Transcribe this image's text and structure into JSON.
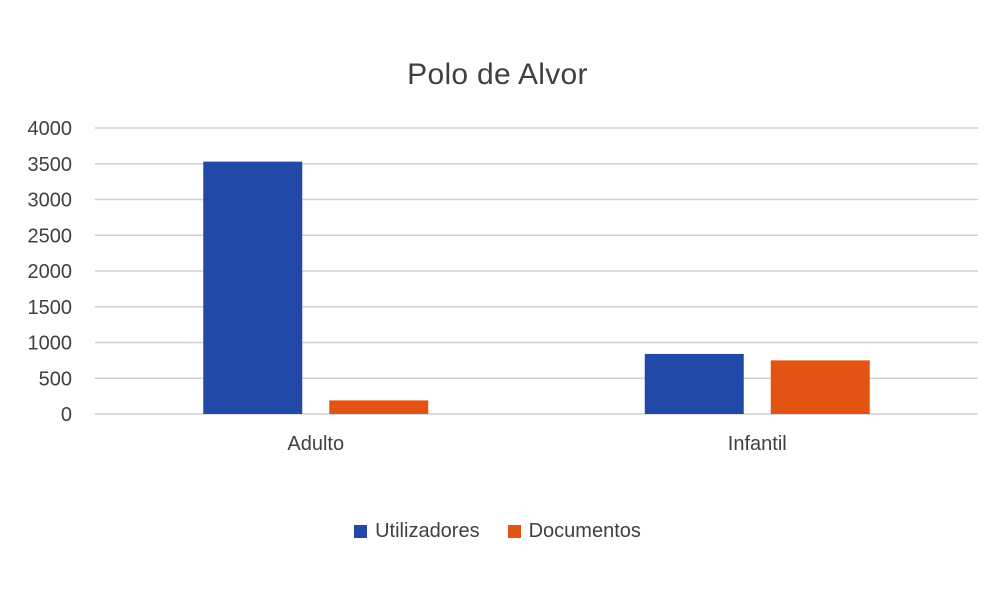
{
  "chart_data": {
    "type": "bar",
    "title": "Polo de Alvor",
    "xlabel": "",
    "ylabel": "",
    "categories": [
      "Adulto",
      "Infantil"
    ],
    "series": [
      {
        "name": "Utilizadores",
        "color": "#2349A8",
        "values": [
          3530,
          840
        ]
      },
      {
        "name": "Documentos",
        "color": "#E35414",
        "values": [
          190,
          750
        ]
      }
    ],
    "ylim": [
      0,
      4000
    ],
    "yticks": [
      0,
      500,
      1000,
      1500,
      2000,
      2500,
      3000,
      3500,
      4000
    ],
    "grid": true,
    "legend_position": "bottom"
  }
}
